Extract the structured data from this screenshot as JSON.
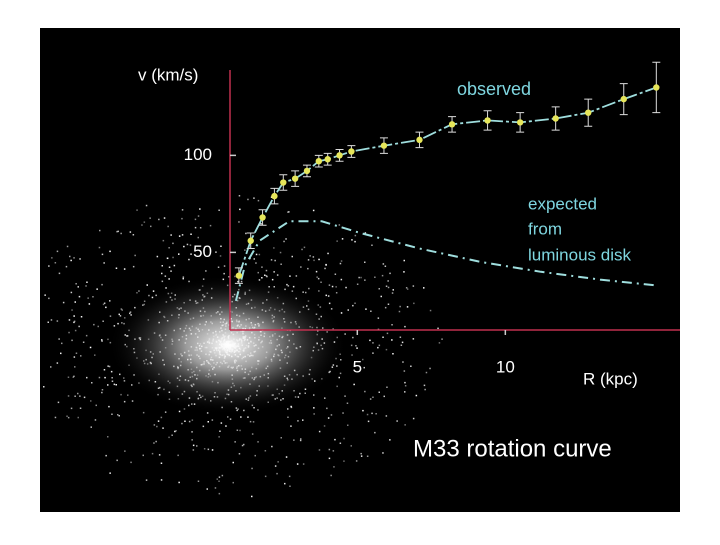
{
  "chart_data": {
    "type": "scatter",
    "title": "M33 rotation curve",
    "x_label": "R (kpc)",
    "y_label": "v (km/s)",
    "xlim": [
      0.7,
      15.9
    ],
    "ylim": [
      10,
      144
    ],
    "xticks": [
      5,
      10
    ],
    "yticks": [
      50,
      100
    ],
    "series": [
      {
        "name": "observed",
        "color": "#e6e65a",
        "line_color": "#9fdede",
        "x": [
          1.0,
          1.4,
          1.8,
          2.2,
          2.5,
          2.9,
          3.3,
          3.7,
          4.0,
          4.4,
          4.8,
          5.9,
          7.1,
          8.2,
          9.4,
          10.5,
          11.7,
          12.8,
          14.0,
          15.1
        ],
        "values": [
          38,
          56,
          68,
          79,
          86,
          88,
          92,
          97,
          98,
          100,
          102,
          105,
          108,
          116,
          118,
          117,
          119,
          122,
          129,
          135
        ],
        "errors": [
          4,
          4,
          4,
          4,
          4,
          4,
          3,
          3,
          3,
          3,
          3,
          4,
          4,
          4,
          5,
          5,
          6,
          7,
          8,
          13
        ]
      },
      {
        "name": "expected",
        "name_lines": [
          "expected",
          "from",
          "luminous disk"
        ],
        "color": "#9fdede",
        "x": [
          0.9,
          1.2,
          1.7,
          2.7,
          3.8,
          5.1,
          7.1,
          9.2,
          11.2,
          13.2,
          15.1
        ],
        "values": [
          25,
          43,
          56,
          66,
          66,
          60,
          52,
          45,
          40,
          36,
          33
        ]
      }
    ],
    "axis_color": "#c0304f"
  }
}
